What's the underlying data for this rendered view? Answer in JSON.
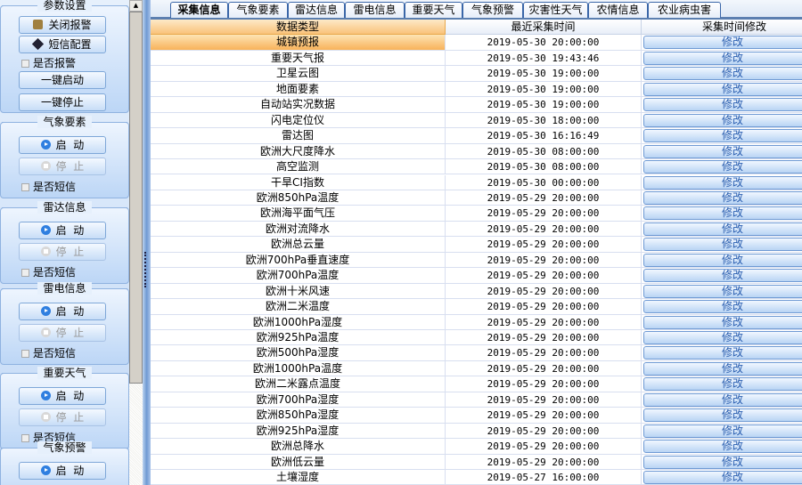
{
  "sidebar": {
    "params": {
      "title": "参数设置",
      "close_alarm": "关闭报警",
      "sms_config": "短信配置",
      "alarm_check": "是否报警",
      "start_all": "一键启动",
      "stop_all": "一键停止"
    },
    "groups": [
      {
        "title": "气象要素",
        "start": "启  动",
        "stop": "停  止",
        "sms_check": "是否短信"
      },
      {
        "title": "雷达信息",
        "start": "启  动",
        "stop": "停  止",
        "sms_check": "是否短信"
      },
      {
        "title": "雷电信息",
        "start": "启  动",
        "stop": "停  止",
        "sms_check": "是否短信"
      },
      {
        "title": "重要天气",
        "start": "启  动",
        "stop": "停  止",
        "sms_check": "是否短信"
      },
      {
        "title": "气象预警",
        "start": "启  动"
      }
    ]
  },
  "tabs": [
    "采集信息",
    "气象要素",
    "雷达信息",
    "雷电信息",
    "重要天气",
    "气象预警",
    "灾害性天气",
    "农情信息",
    "农业病虫害"
  ],
  "active_tab": "采集信息",
  "table": {
    "columns": [
      "数据类型",
      "最近采集时间",
      "采集时间修改"
    ],
    "modify_label": "修改",
    "selected_row": 0,
    "rows": [
      [
        "城镇预报",
        "2019-05-30 20:00:00"
      ],
      [
        "重要天气报",
        "2019-05-30 19:43:46"
      ],
      [
        "卫星云图",
        "2019-05-30 19:00:00"
      ],
      [
        "地面要素",
        "2019-05-30 19:00:00"
      ],
      [
        "自动站实况数据",
        "2019-05-30 19:00:00"
      ],
      [
        "闪电定位仪",
        "2019-05-30 18:00:00"
      ],
      [
        "雷达图",
        "2019-05-30 16:16:49"
      ],
      [
        "欧洲大尺度降水",
        "2019-05-30 08:00:00"
      ],
      [
        "高空监测",
        "2019-05-30 08:00:00"
      ],
      [
        "干旱CI指数",
        "2019-05-30 00:00:00"
      ],
      [
        "欧洲850hPa温度",
        "2019-05-29 20:00:00"
      ],
      [
        "欧洲海平面气压",
        "2019-05-29 20:00:00"
      ],
      [
        "欧洲对流降水",
        "2019-05-29 20:00:00"
      ],
      [
        "欧洲总云量",
        "2019-05-29 20:00:00"
      ],
      [
        "欧洲700hPa垂直速度",
        "2019-05-29 20:00:00"
      ],
      [
        "欧洲700hPa温度",
        "2019-05-29 20:00:00"
      ],
      [
        "欧洲十米风速",
        "2019-05-29 20:00:00"
      ],
      [
        "欧洲二米温度",
        "2019-05-29 20:00:00"
      ],
      [
        "欧洲1000hPa湿度",
        "2019-05-29 20:00:00"
      ],
      [
        "欧洲925hPa温度",
        "2019-05-29 20:00:00"
      ],
      [
        "欧洲500hPa湿度",
        "2019-05-29 20:00:00"
      ],
      [
        "欧洲1000hPa温度",
        "2019-05-29 20:00:00"
      ],
      [
        "欧洲二米露点温度",
        "2019-05-29 20:00:00"
      ],
      [
        "欧洲700hPa湿度",
        "2019-05-29 20:00:00"
      ],
      [
        "欧洲850hPa湿度",
        "2019-05-29 20:00:00"
      ],
      [
        "欧洲925hPa湿度",
        "2019-05-29 20:00:00"
      ],
      [
        "欧洲总降水",
        "2019-05-29 20:00:00"
      ],
      [
        "欧洲低云量",
        "2019-05-29 20:00:00"
      ],
      [
        "土壤湿度",
        "2019-05-27 16:00:00"
      ]
    ]
  }
}
